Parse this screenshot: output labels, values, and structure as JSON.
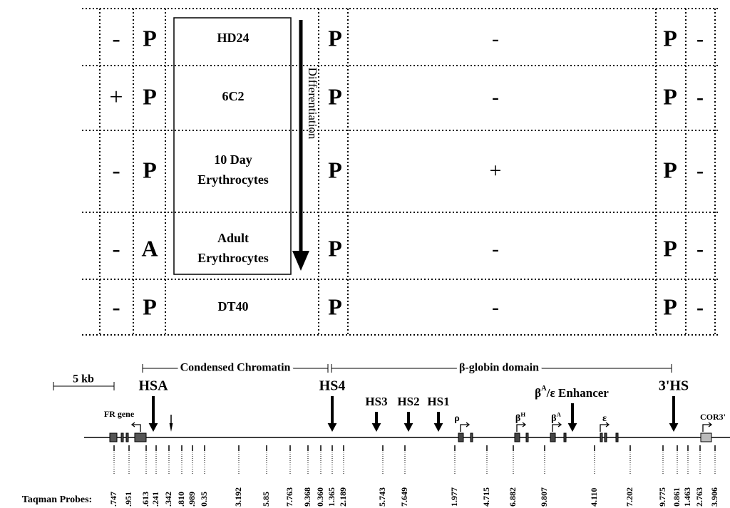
{
  "grid": {
    "rows": [
      {
        "c1": "-",
        "c2": "P",
        "cell": [
          "HD24"
        ],
        "c4": "P",
        "c5": "-",
        "c6": "P",
        "c7": "-"
      },
      {
        "c1": "+",
        "c2": "P",
        "cell": [
          "6C2"
        ],
        "c4": "P",
        "c5": "-",
        "c6": "P",
        "c7": "-"
      },
      {
        "c1": "-",
        "c2": "P",
        "cell": [
          "10 Day",
          "Erythrocytes"
        ],
        "c4": "P",
        "c5": "+",
        "c6": "P",
        "c7": "-"
      },
      {
        "c1": "-",
        "c2": "A",
        "cell": [
          "Adult",
          "Erythrocytes"
        ],
        "c4": "P",
        "c5": "-",
        "c6": "P",
        "c7": "-"
      },
      {
        "c1": "-",
        "c2": "P",
        "cell": [
          "DT40"
        ],
        "c4": "P",
        "c5": "-",
        "c6": "P",
        "c7": "-"
      }
    ],
    "arrow_label": "Differentiation"
  },
  "map": {
    "condensed": "Condensed Chromatin",
    "domain": "β-globin domain",
    "scale": "5 kb",
    "sites": [
      "HSA",
      "HS4",
      "HS3",
      "HS2",
      "HS1",
      "3'HS"
    ],
    "enhancer": {
      "base": "β",
      "sup": "A",
      "rest": "/ε Enhancer"
    },
    "fr_gene": "FR gene",
    "genes": [
      {
        "base": "ρ",
        "sup": ""
      },
      {
        "base": "β",
        "sup": "H"
      },
      {
        "base": "β",
        "sup": "A"
      },
      {
        "base": "ε",
        "sup": ""
      }
    ],
    "cor": "COR3'",
    "probes_label": "Taqman Probes:",
    "probes": [
      ".747",
      ".951",
      ".613",
      ".241",
      ".342",
      ".810",
      ".989",
      "0.35",
      "3.192",
      "5.85",
      "7.763",
      "9.368",
      "0.360",
      "1.365",
      "2.189",
      "5.743",
      "7.649",
      "1.977",
      "4.715",
      "6.882",
      "9.807",
      "4.110",
      "7.202",
      "9.775",
      "0.861",
      "1.463",
      "2.763",
      "3.906"
    ]
  }
}
